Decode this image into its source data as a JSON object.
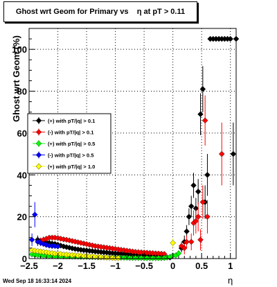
{
  "chart_data": {
    "type": "scatter",
    "title": "Ghost wrt Geom for Primary vs    η at pT > 0.11",
    "xlabel": "η",
    "ylabel": "Ghost wrt Geom (%)",
    "xlim": [
      -2.5,
      1.1
    ],
    "ylim": [
      0,
      110
    ],
    "x_ticks": [
      -2.5,
      -2,
      -1.5,
      -1,
      -0.5,
      0,
      0.5,
      1
    ],
    "x_tick_labels": [
      "−2.5",
      "−2",
      "−1.5",
      "−1",
      "−0.5",
      "0",
      "0.5",
      "1"
    ],
    "y_ticks": [
      0,
      20,
      40,
      60,
      80,
      100
    ],
    "y_tick_labels": [
      "0",
      "20",
      "40",
      "60",
      "80",
      "100"
    ],
    "grid": true,
    "legend_position": "middle-left",
    "timestamp": "Wed Sep 18 16:33:14 2024",
    "series": [
      {
        "name": "(+) with pT/|q| > 0.1",
        "color": "#000000",
        "points": [
          [
            -2.35,
            9,
            2
          ],
          [
            -2.3,
            8.5,
            1.5
          ],
          [
            -2.25,
            8,
            1.2
          ],
          [
            -2.2,
            7.8,
            1
          ],
          [
            -2.15,
            7.5,
            1
          ],
          [
            -2.1,
            7.2,
            0.8
          ],
          [
            -2.05,
            7,
            0.8
          ],
          [
            -2.0,
            6.6,
            0.7
          ],
          [
            -1.95,
            6.2,
            0.7
          ],
          [
            -1.9,
            5.8,
            0.6
          ],
          [
            -1.85,
            5.5,
            0.6
          ],
          [
            -1.8,
            5.2,
            0.6
          ],
          [
            -1.75,
            4.9,
            0.6
          ],
          [
            -1.7,
            4.6,
            0.5
          ],
          [
            -1.65,
            4.4,
            0.5
          ],
          [
            -1.6,
            4.2,
            0.5
          ],
          [
            -1.55,
            4.0,
            0.5
          ],
          [
            -1.5,
            3.9,
            0.5
          ],
          [
            -1.45,
            3.7,
            0.5
          ],
          [
            -1.4,
            3.6,
            0.5
          ],
          [
            -1.35,
            3.4,
            0.5
          ],
          [
            -1.3,
            3.3,
            0.5
          ],
          [
            -1.25,
            3.1,
            0.5
          ],
          [
            -1.2,
            3.0,
            0.5
          ],
          [
            -1.15,
            2.9,
            0.5
          ],
          [
            -1.1,
            2.7,
            0.5
          ],
          [
            -1.05,
            2.6,
            0.5
          ],
          [
            -1.0,
            2.5,
            0.5
          ],
          [
            -0.95,
            2.4,
            0.5
          ],
          [
            -0.9,
            2.3,
            0.5
          ],
          [
            -0.85,
            2.2,
            0.5
          ],
          [
            -0.8,
            2.0,
            0.5
          ],
          [
            -0.75,
            1.9,
            0.5
          ],
          [
            -0.7,
            1.8,
            0.5
          ],
          [
            -0.65,
            1.7,
            0.5
          ],
          [
            -0.6,
            1.6,
            0.5
          ],
          [
            -0.55,
            1.5,
            0.5
          ],
          [
            -0.5,
            1.4,
            0.5
          ],
          [
            -0.45,
            1.3,
            0.5
          ],
          [
            -0.4,
            1.2,
            0.5
          ],
          [
            -0.35,
            1.1,
            0.5
          ],
          [
            -0.3,
            1.0,
            0.5
          ],
          [
            -0.25,
            0.9,
            0.5
          ],
          [
            -0.2,
            0.8,
            0.5
          ],
          [
            -0.15,
            0.7,
            0.5
          ],
          [
            -0.1,
            0.6,
            0.5
          ],
          [
            -0.05,
            0.5,
            0.5
          ],
          [
            0.15,
            5,
            2
          ],
          [
            0.2,
            8,
            3
          ],
          [
            0.24,
            13,
            3
          ],
          [
            0.28,
            20,
            4
          ],
          [
            0.32,
            25,
            5
          ],
          [
            0.36,
            35,
            6
          ],
          [
            0.4,
            24,
            5
          ],
          [
            0.44,
            32,
            6
          ],
          [
            0.48,
            69,
            10
          ],
          [
            0.52,
            81,
            11
          ],
          [
            0.56,
            27,
            8
          ],
          [
            0.6,
            40,
            10
          ],
          [
            0.65,
            105,
            0
          ],
          [
            0.7,
            105,
            0
          ],
          [
            0.75,
            105,
            0
          ],
          [
            0.8,
            105,
            0
          ],
          [
            0.85,
            105,
            0
          ],
          [
            0.9,
            105,
            0
          ],
          [
            0.95,
            105,
            0
          ],
          [
            1.0,
            105,
            0
          ],
          [
            1.05,
            50,
            15
          ],
          [
            1.1,
            105,
            0
          ]
        ]
      },
      {
        "name": "(-) with pT/|q| > 0.1",
        "color": "#ff0000",
        "points": [
          [
            -2.3,
            8,
            2
          ],
          [
            -2.25,
            9,
            1.5
          ],
          [
            -2.2,
            9.5,
            1.2
          ],
          [
            -2.15,
            10,
            1
          ],
          [
            -2.1,
            10,
            1
          ],
          [
            -2.05,
            10,
            0.8
          ],
          [
            -2.0,
            9.8,
            0.8
          ],
          [
            -1.95,
            9.5,
            0.7
          ],
          [
            -1.9,
            9.2,
            0.7
          ],
          [
            -1.85,
            9,
            0.6
          ],
          [
            -1.8,
            8.7,
            0.6
          ],
          [
            -1.75,
            8.4,
            0.6
          ],
          [
            -1.7,
            8.1,
            0.6
          ],
          [
            -1.65,
            7.8,
            0.5
          ],
          [
            -1.6,
            7.5,
            0.5
          ],
          [
            -1.55,
            7.2,
            0.5
          ],
          [
            -1.5,
            6.9,
            0.5
          ],
          [
            -1.45,
            6.6,
            0.5
          ],
          [
            -1.4,
            6.3,
            0.5
          ],
          [
            -1.35,
            6.0,
            0.5
          ],
          [
            -1.3,
            5.8,
            0.5
          ],
          [
            -1.25,
            5.6,
            0.5
          ],
          [
            -1.2,
            5.4,
            0.5
          ],
          [
            -1.15,
            5.2,
            0.5
          ],
          [
            -1.1,
            5.0,
            0.5
          ],
          [
            -1.05,
            4.8,
            0.5
          ],
          [
            -1.0,
            4.6,
            0.5
          ],
          [
            -0.95,
            4.4,
            0.5
          ],
          [
            -0.9,
            4.2,
            0.5
          ],
          [
            -0.85,
            4.0,
            0.5
          ],
          [
            -0.8,
            3.8,
            0.5
          ],
          [
            -0.75,
            3.6,
            0.5
          ],
          [
            -0.7,
            3.4,
            0.5
          ],
          [
            -0.65,
            3.2,
            0.5
          ],
          [
            -0.6,
            3.1,
            0.5
          ],
          [
            -0.55,
            3.0,
            0.5
          ],
          [
            -0.5,
            2.9,
            0.5
          ],
          [
            -0.45,
            2.8,
            0.5
          ],
          [
            -0.4,
            2.7,
            0.5
          ],
          [
            -0.35,
            2.6,
            0.5
          ],
          [
            -0.3,
            2.5,
            0.5
          ],
          [
            -0.25,
            2.4,
            0.5
          ],
          [
            -0.2,
            2.3,
            0.5
          ],
          [
            -0.15,
            2.2,
            0.5
          ],
          [
            0.15,
            6,
            2
          ],
          [
            0.2,
            5,
            3
          ],
          [
            0.24,
            8,
            3
          ],
          [
            0.32,
            8,
            4
          ],
          [
            0.36,
            17,
            6
          ],
          [
            0.4,
            18,
            6
          ],
          [
            0.44,
            20,
            7
          ],
          [
            0.48,
            9,
            5
          ],
          [
            0.52,
            27,
            8
          ],
          [
            0.56,
            66,
            12
          ],
          [
            0.6,
            20,
            8
          ],
          [
            0.85,
            50,
            15
          ]
        ]
      },
      {
        "name": "(+) with pT/|q| > 0.5",
        "color": "#00ff00",
        "points": [
          [
            -2.45,
            2,
            1
          ],
          [
            -2.4,
            1.8,
            0.8
          ],
          [
            -2.35,
            1.6,
            0.7
          ],
          [
            -2.3,
            1.5,
            0.6
          ],
          [
            -2.25,
            1.4,
            0.5
          ],
          [
            -2.2,
            1.3,
            0.5
          ],
          [
            -2.15,
            1.3,
            0.5
          ],
          [
            -2.1,
            1.2,
            0.5
          ],
          [
            -2.05,
            1.2,
            0.5
          ],
          [
            -2.0,
            1.1,
            0.5
          ],
          [
            -1.95,
            1.1,
            0.5
          ],
          [
            -1.9,
            1.0,
            0.5
          ],
          [
            -1.85,
            1.0,
            0.5
          ],
          [
            -1.8,
            1.0,
            0.5
          ],
          [
            -1.75,
            0.9,
            0.5
          ],
          [
            -1.7,
            0.9,
            0.5
          ],
          [
            -1.65,
            0.9,
            0.5
          ],
          [
            -1.6,
            0.8,
            0.5
          ],
          [
            -1.55,
            0.8,
            0.5
          ],
          [
            -1.5,
            0.8,
            0.5
          ],
          [
            -1.45,
            0.7,
            0.5
          ],
          [
            -1.4,
            0.7,
            0.5
          ],
          [
            -1.35,
            0.7,
            0.5
          ],
          [
            -1.3,
            0.6,
            0.5
          ],
          [
            -1.25,
            0.6,
            0.5
          ],
          [
            -1.2,
            0.6,
            0.5
          ],
          [
            -1.15,
            0.5,
            0.5
          ],
          [
            -1.1,
            0.5,
            0.5
          ],
          [
            -1.05,
            0.5,
            0.5
          ],
          [
            -1.0,
            0.5,
            0.5
          ],
          [
            -0.95,
            0.4,
            0.5
          ],
          [
            -0.9,
            0.4,
            0.5
          ],
          [
            -0.85,
            0.4,
            0.5
          ],
          [
            -0.8,
            0.4,
            0.5
          ],
          [
            -0.75,
            0.3,
            0.5
          ],
          [
            -0.7,
            0.3,
            0.5
          ],
          [
            -0.65,
            0.3,
            0.5
          ],
          [
            -0.6,
            0.3,
            0.5
          ],
          [
            -0.55,
            0.3,
            0.5
          ],
          [
            -0.5,
            0.2,
            0.5
          ],
          [
            -0.45,
            0.2,
            0.5
          ],
          [
            -0.4,
            0.2,
            0.5
          ],
          [
            -0.35,
            0.2,
            0.5
          ],
          [
            -0.3,
            0.2,
            0.5
          ],
          [
            -0.25,
            0.2,
            0.5
          ],
          [
            -0.2,
            0.2,
            0.5
          ],
          [
            -0.15,
            0.3,
            0.5
          ],
          [
            -0.1,
            0.5,
            0.5
          ],
          [
            -0.05,
            0.8,
            0.5
          ],
          [
            0.0,
            1.5,
            1
          ],
          [
            0.05,
            1.5,
            1
          ],
          [
            0.1,
            2.5,
            1.5
          ]
        ]
      },
      {
        "name": "(-) with pT/|q| > 0.5",
        "color": "#0000ff",
        "points": [
          [
            -2.45,
            9,
            3
          ],
          [
            -2.4,
            21,
            6
          ],
          [
            -2.35,
            8,
            2
          ],
          [
            -2.3,
            7.5,
            1.5
          ],
          [
            -2.25,
            7,
            1.2
          ],
          [
            -2.2,
            6.5,
            1
          ],
          [
            -2.15,
            6.2,
            1
          ],
          [
            -2.1,
            6,
            0.8
          ],
          [
            -2.05,
            6,
            0.8
          ],
          [
            -2.0,
            5.8,
            0.8
          ]
        ]
      },
      {
        "name": "(+) with pT/|q| > 1.0",
        "color": "#ffff00",
        "points": [
          [
            -2.45,
            4,
            1.5
          ],
          [
            -2.4,
            3.8,
            1.2
          ],
          [
            -2.35,
            3.6,
            1
          ],
          [
            -2.3,
            3.4,
            1
          ],
          [
            -2.25,
            3.2,
            0.8
          ],
          [
            -2.2,
            3.0,
            0.8
          ],
          [
            -2.15,
            2.8,
            0.7
          ],
          [
            -2.1,
            2.6,
            0.7
          ],
          [
            -2.05,
            2.4,
            0.6
          ],
          [
            -2.0,
            2.3,
            0.6
          ],
          [
            -1.95,
            2.2,
            0.6
          ],
          [
            -1.9,
            2.0,
            0.6
          ],
          [
            -1.85,
            1.9,
            0.5
          ],
          [
            -1.8,
            1.8,
            0.5
          ],
          [
            -1.75,
            1.7,
            0.5
          ],
          [
            -1.7,
            1.6,
            0.5
          ],
          [
            -1.65,
            1.5,
            0.5
          ],
          [
            -1.6,
            1.4,
            0.5
          ],
          [
            -1.55,
            1.3,
            0.5
          ],
          [
            -1.5,
            1.2,
            0.5
          ],
          [
            -1.45,
            1.1,
            0.5
          ],
          [
            -1.4,
            1.0,
            0.5
          ],
          [
            -1.35,
            0.9,
            0.5
          ],
          [
            -1.3,
            0.8,
            0.5
          ],
          [
            -1.25,
            0.7,
            0.5
          ],
          [
            -1.2,
            0.6,
            0.5
          ],
          [
            -1.15,
            0.5,
            0.5
          ],
          [
            -1.1,
            0.4,
            0.5
          ],
          [
            -1.05,
            0.3,
            0.5
          ],
          [
            -1.0,
            0.2,
            0.5
          ],
          [
            -0.95,
            0.2,
            0.5
          ],
          [
            0.0,
            7.5,
            2
          ]
        ]
      }
    ]
  }
}
